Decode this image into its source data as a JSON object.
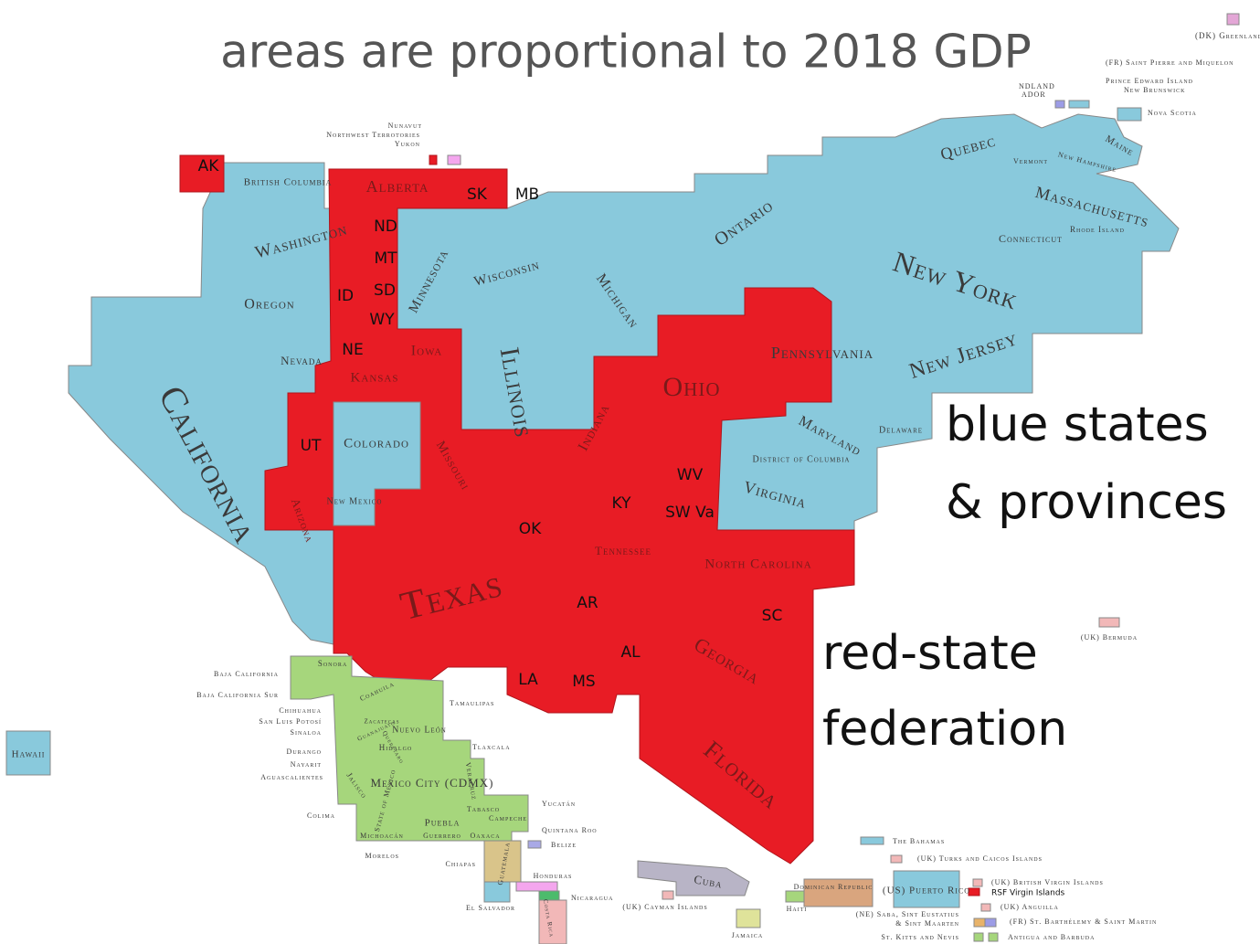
{
  "title": "areas are proportional to 2018 GDP",
  "legend": {
    "blue": [
      "blue states",
      "& provinces"
    ],
    "red": [
      "red-state",
      "federation"
    ]
  },
  "labels": [
    "AK",
    "British Columbia",
    "Alberta",
    "SK",
    "MB",
    "Washington",
    "ND",
    "MT",
    "SD",
    "ID",
    "WY",
    "NE",
    "Iowa",
    "Kansas",
    "Oregon",
    "Nevada",
    "California",
    "Minnesota",
    "Wisconsin",
    "Illinois",
    "Michigan",
    "Ontario",
    "Quebec",
    "New York",
    "Pennsylvania",
    "New Jersey",
    "Ohio",
    "Indiana",
    "Missouri",
    "Maryland",
    "Delaware",
    "District of Columbia",
    "Virginia",
    "UT",
    "Colorado",
    "New Mexico",
    "Arizona",
    "WV",
    "KY",
    "SW Va",
    "OK",
    "Texas",
    "Tennessee",
    "North Carolina",
    "SC",
    "AR",
    "LA",
    "MS",
    "AL",
    "Georgia",
    "Florida",
    "Massachusetts",
    "Connecticut",
    "Rhode Island",
    "Maine",
    "New Hampshire",
    "Vermont",
    "(FR) Saint Pierre and Miquelon",
    "Prince Edward Island",
    "New Brunswick",
    "Nova Scotia",
    "(DK) Greenland",
    "NDLAND",
    "ADOR",
    "Nunavut",
    "Northwest Terrotories",
    "Yukon",
    "Hawaii",
    "Sonora",
    "Baja California",
    "Baja California Sur",
    "Chihuahua",
    "San Luis Potosí",
    "Sinaloa",
    "Durango",
    "Nayarit",
    "Aguascalientes",
    "Colima",
    "Morelos",
    "Chiapas",
    "El Salvador",
    "Coahuila",
    "Zacatecas",
    "Guanajuato",
    "Querétaro",
    "Nuevo León",
    "Tamaulipas",
    "Tlaxcala",
    "Hidalgo",
    "Mexico City (CDMX)",
    "Veracruz",
    "Jalisco",
    "State of Mexico",
    "Puebla",
    "Michoacán",
    "Guerrero",
    "Oaxaca",
    "Tabasco",
    "Campeche",
    "Yucatán",
    "Quintana Roo",
    "Belize",
    "Guatemala",
    "Honduras",
    "Nicaragua",
    "Costa Rica",
    "Cuba",
    "(UK) Cayman Islands",
    "Jamaica",
    "Haiti",
    "Dominican Republic",
    "(US) Puerto Rico",
    "The Bahamas",
    "(UK) Turks and Caicos Islands",
    "(UK) British Virgin Islands",
    "RSF Virgin Islands",
    "(UK) Anguilla",
    "(NE) Saba, Sint Eustatius",
    "& Sint Maarten",
    "(FR) St. Barthélemy & Saint Martin",
    "St. Kitts and Nevis",
    "Antigua and Barbuda",
    "(UK) Bermuda"
  ]
}
